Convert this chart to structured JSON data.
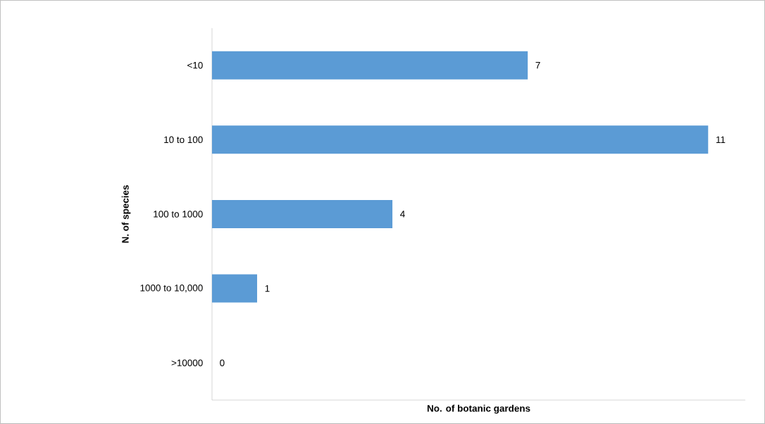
{
  "chart_data": {
    "type": "bar",
    "orientation": "horizontal",
    "xlabel": "No. of botanic gardens",
    "ylabel": "N. of species",
    "categories": [
      "<10",
      "10 to 100",
      "100 to 1000",
      "1000 to 10,000",
      ">10000"
    ],
    "values": [
      7,
      11,
      4,
      1,
      0
    ],
    "value_labels": [
      "7",
      "11",
      "4",
      "1",
      "0"
    ],
    "color": "#5b9bd5"
  }
}
